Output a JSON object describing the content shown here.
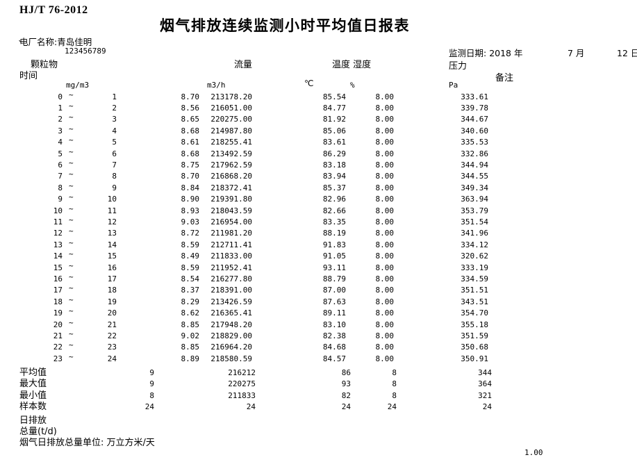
{
  "meta": {
    "standard": "HJ/T 76-2012",
    "title": "烟气排放连续监测小时平均值日报表",
    "plant_label": "电厂名称:",
    "plant_name": "青岛佳明",
    "tick_mark": "`",
    "plant_code": "123456789",
    "date_label": "监测日期:",
    "date_year": "2018 年",
    "date_month": "7 月",
    "date_day": "12 日",
    "colors": {
      "ink": "#000000",
      "background": "#ffffff"
    }
  },
  "columns": {
    "time_header": "时间",
    "pm_header": "颗粒物",
    "flow_header": "流量",
    "temp_humidity_header": "温度 湿度",
    "pressure_header": "压力",
    "remark_header": "备注",
    "time_separator": "~",
    "units": {
      "pm": "mg/m3",
      "flow": "m3/h",
      "temp": "℃",
      "humidity": "%",
      "pressure": "Pa"
    }
  },
  "rows": [
    {
      "from": "0",
      "to": "1",
      "pm": "8.70",
      "flow": "213178.20",
      "temp": "85.54",
      "hum": "8.00",
      "press": "333.61"
    },
    {
      "from": "1",
      "to": "2",
      "pm": "8.56",
      "flow": "216051.00",
      "temp": "84.77",
      "hum": "8.00",
      "press": "339.78"
    },
    {
      "from": "2",
      "to": "3",
      "pm": "8.65",
      "flow": "220275.00",
      "temp": "81.92",
      "hum": "8.00",
      "press": "344.67"
    },
    {
      "from": "3",
      "to": "4",
      "pm": "8.68",
      "flow": "214987.80",
      "temp": "85.06",
      "hum": "8.00",
      "press": "340.60"
    },
    {
      "from": "4",
      "to": "5",
      "pm": "8.61",
      "flow": "218255.41",
      "temp": "83.61",
      "hum": "8.00",
      "press": "335.53"
    },
    {
      "from": "5",
      "to": "6",
      "pm": "8.68",
      "flow": "213492.59",
      "temp": "86.29",
      "hum": "8.00",
      "press": "332.86"
    },
    {
      "from": "6",
      "to": "7",
      "pm": "8.75",
      "flow": "217962.59",
      "temp": "83.18",
      "hum": "8.00",
      "press": "344.94"
    },
    {
      "from": "7",
      "to": "8",
      "pm": "8.70",
      "flow": "216868.20",
      "temp": "83.94",
      "hum": "8.00",
      "press": "344.55"
    },
    {
      "from": "8",
      "to": "9",
      "pm": "8.84",
      "flow": "218372.41",
      "temp": "85.37",
      "hum": "8.00",
      "press": "349.34"
    },
    {
      "from": "9",
      "to": "10",
      "pm": "8.90",
      "flow": "219391.80",
      "temp": "82.96",
      "hum": "8.00",
      "press": "363.94"
    },
    {
      "from": "10",
      "to": "11",
      "pm": "8.93",
      "flow": "218043.59",
      "temp": "82.66",
      "hum": "8.00",
      "press": "353.79"
    },
    {
      "from": "11",
      "to": "12",
      "pm": "9.03",
      "flow": "216954.00",
      "temp": "83.35",
      "hum": "8.00",
      "press": "351.54"
    },
    {
      "from": "12",
      "to": "13",
      "pm": "8.72",
      "flow": "211981.20",
      "temp": "88.19",
      "hum": "8.00",
      "press": "341.96"
    },
    {
      "from": "13",
      "to": "14",
      "pm": "8.59",
      "flow": "212711.41",
      "temp": "91.83",
      "hum": "8.00",
      "press": "334.12"
    },
    {
      "from": "14",
      "to": "15",
      "pm": "8.49",
      "flow": "211833.00",
      "temp": "91.05",
      "hum": "8.00",
      "press": "320.62"
    },
    {
      "from": "15",
      "to": "16",
      "pm": "8.59",
      "flow": "211952.41",
      "temp": "93.11",
      "hum": "8.00",
      "press": "333.19"
    },
    {
      "from": "16",
      "to": "17",
      "pm": "8.54",
      "flow": "216277.80",
      "temp": "88.79",
      "hum": "8.00",
      "press": "334.59"
    },
    {
      "from": "17",
      "to": "18",
      "pm": "8.37",
      "flow": "218391.00",
      "temp": "87.00",
      "hum": "8.00",
      "press": "351.51"
    },
    {
      "from": "18",
      "to": "19",
      "pm": "8.29",
      "flow": "213426.59",
      "temp": "87.63",
      "hum": "8.00",
      "press": "343.51"
    },
    {
      "from": "19",
      "to": "20",
      "pm": "8.62",
      "flow": "216365.41",
      "temp": "89.11",
      "hum": "8.00",
      "press": "354.70"
    },
    {
      "from": "20",
      "to": "21",
      "pm": "8.85",
      "flow": "217948.20",
      "temp": "83.10",
      "hum": "8.00",
      "press": "355.18"
    },
    {
      "from": "21",
      "to": "22",
      "pm": "9.02",
      "flow": "218829.00",
      "temp": "82.38",
      "hum": "8.00",
      "press": "351.59"
    },
    {
      "from": "22",
      "to": "23",
      "pm": "8.85",
      "flow": "216964.20",
      "temp": "84.68",
      "hum": "8.00",
      "press": "350.68"
    },
    {
      "from": "23",
      "to": "24",
      "pm": "8.89",
      "flow": "218580.59",
      "temp": "84.57",
      "hum": "8.00",
      "press": "350.91"
    }
  ],
  "summary": [
    {
      "label": "平均值",
      "pm": "9",
      "flow": "216212",
      "temp": "86",
      "hum": "8",
      "press": "344"
    },
    {
      "label": "最大值",
      "pm": "9",
      "flow": "220275",
      "temp": "93",
      "hum": "8",
      "press": "364"
    },
    {
      "label": "最小值",
      "pm": "8",
      "flow": "211833",
      "temp": "82",
      "hum": "8",
      "press": "321"
    },
    {
      "label": "样本数",
      "pm": "24",
      "flow": "24",
      "temp": "24",
      "hum": "24",
      "press": "24"
    }
  ],
  "footer": {
    "daily_emission_line1": "日排放",
    "daily_emission_line2": "总量(t/d)",
    "emission_unit_note": "烟气日排放总量单位: 万立方米/天",
    "scale": "1.00"
  }
}
